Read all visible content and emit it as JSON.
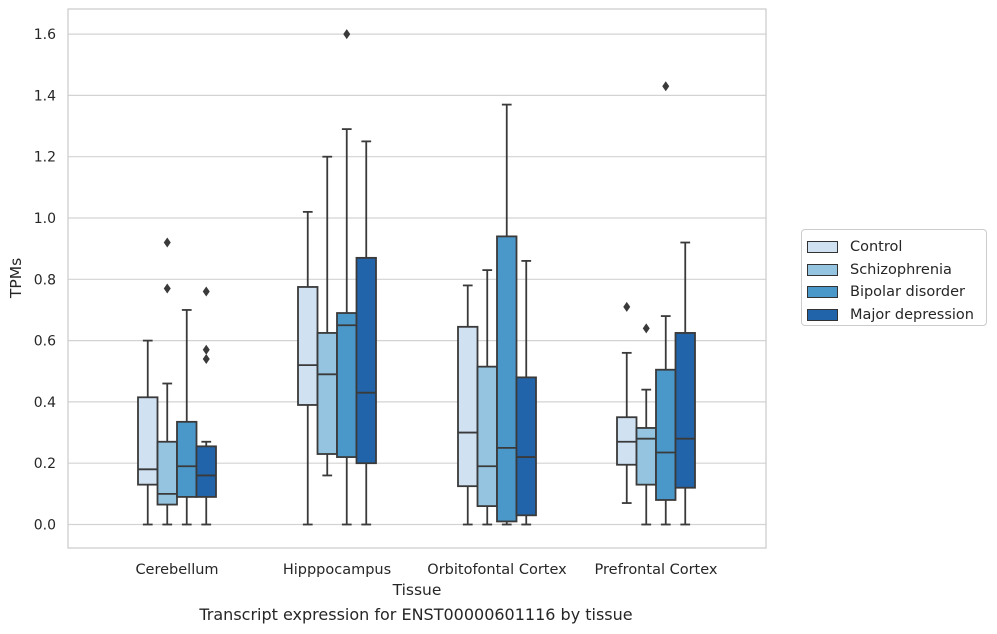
{
  "chart_data": {
    "type": "boxplot",
    "xlabel": "Tissue",
    "ylabel": "TPMs",
    "caption": "Transcript expression for ENST00000601116 by tissue",
    "ylim": [
      -0.08,
      1.68
    ],
    "yticks": [
      "0.0",
      "0.2",
      "0.4",
      "0.6",
      "0.8",
      "1.0",
      "1.2",
      "1.4",
      "1.6"
    ],
    "grid": "horizontal",
    "legend_position": "right",
    "categories": [
      "Cerebellum",
      "Hipppocampus",
      "Orbitofontal Cortex",
      "Prefrontal Cortex"
    ],
    "series": [
      {
        "name": "Control",
        "color": "#d0e1f2",
        "boxes": [
          {
            "whislo": 0.0,
            "q1": 0.13,
            "med": 0.18,
            "q3": 0.415,
            "whishi": 0.6,
            "fliers": []
          },
          {
            "whislo": 0.0,
            "q1": 0.39,
            "med": 0.52,
            "q3": 0.775,
            "whishi": 1.02,
            "fliers": []
          },
          {
            "whislo": 0.0,
            "q1": 0.125,
            "med": 0.3,
            "q3": 0.645,
            "whishi": 0.78,
            "fliers": []
          },
          {
            "whislo": 0.07,
            "q1": 0.195,
            "med": 0.27,
            "q3": 0.35,
            "whishi": 0.56,
            "fliers": [
              0.71
            ]
          }
        ]
      },
      {
        "name": "Schizophrenia",
        "color": "#94c4df",
        "boxes": [
          {
            "whislo": 0.0,
            "q1": 0.065,
            "med": 0.1,
            "q3": 0.27,
            "whishi": 0.46,
            "fliers": [
              0.77,
              0.92
            ]
          },
          {
            "whislo": 0.16,
            "q1": 0.23,
            "med": 0.49,
            "q3": 0.625,
            "whishi": 1.2,
            "fliers": []
          },
          {
            "whislo": 0.0,
            "q1": 0.06,
            "med": 0.19,
            "q3": 0.515,
            "whishi": 0.83,
            "fliers": []
          },
          {
            "whislo": 0.0,
            "q1": 0.13,
            "med": 0.28,
            "q3": 0.315,
            "whishi": 0.44,
            "fliers": [
              0.64
            ]
          }
        ]
      },
      {
        "name": "Bipolar disorder",
        "color": "#4a98c9",
        "boxes": [
          {
            "whislo": 0.0,
            "q1": 0.09,
            "med": 0.19,
            "q3": 0.335,
            "whishi": 0.7,
            "fliers": []
          },
          {
            "whislo": 0.0,
            "q1": 0.22,
            "med": 0.65,
            "q3": 0.69,
            "whishi": 1.29,
            "fliers": [
              1.6
            ]
          },
          {
            "whislo": 0.0,
            "q1": 0.01,
            "med": 0.25,
            "q3": 0.94,
            "whishi": 1.37,
            "fliers": []
          },
          {
            "whislo": 0.0,
            "q1": 0.08,
            "med": 0.235,
            "q3": 0.505,
            "whishi": 0.68,
            "fliers": [
              1.43
            ]
          }
        ]
      },
      {
        "name": "Major depression",
        "color": "#2264aa",
        "boxes": [
          {
            "whislo": 0.0,
            "q1": 0.09,
            "med": 0.16,
            "q3": 0.255,
            "whishi": 0.27,
            "fliers": [
              0.54,
              0.57,
              0.76
            ]
          },
          {
            "whislo": 0.0,
            "q1": 0.2,
            "med": 0.43,
            "q3": 0.87,
            "whishi": 1.25,
            "fliers": []
          },
          {
            "whislo": 0.0,
            "q1": 0.03,
            "med": 0.22,
            "q3": 0.48,
            "whishi": 0.86,
            "fliers": []
          },
          {
            "whislo": 0.0,
            "q1": 0.12,
            "med": 0.28,
            "q3": 0.625,
            "whishi": 0.92,
            "fliers": []
          }
        ]
      }
    ]
  }
}
